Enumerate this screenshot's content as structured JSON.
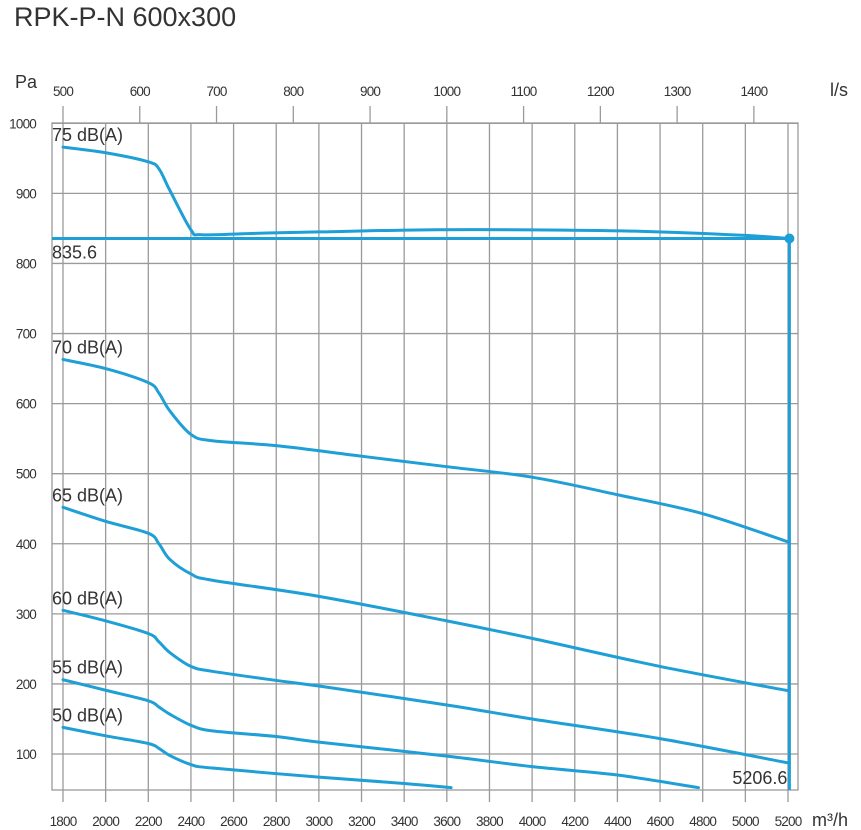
{
  "chart_data": {
    "type": "line",
    "title": "RPK-P-N 600x300",
    "ylabel": "Pa",
    "xlabel": "m³/h",
    "x2label": "l/s",
    "xlim": [
      1750,
      5240
    ],
    "ylim": [
      48.6,
      1000
    ],
    "x_ticks": [
      1800,
      2000,
      2200,
      2400,
      2600,
      2800,
      3000,
      3200,
      3400,
      3600,
      3800,
      4000,
      4200,
      4400,
      4600,
      4800,
      5000,
      5200
    ],
    "x2_ticks": [
      500,
      600,
      700,
      800,
      900,
      1000,
      1100,
      1200,
      1300,
      1400
    ],
    "y_ticks": [
      100,
      200,
      300,
      400,
      500,
      600,
      700,
      800,
      900,
      1000
    ],
    "grid": true,
    "colors": {
      "line": "#1e9fd6",
      "grid": "#9a9a9a"
    },
    "series": [
      {
        "name": "75 dB(A)",
        "points": [
          [
            1800,
            966
          ],
          [
            2000,
            958
          ],
          [
            2200,
            945
          ],
          [
            2250,
            935
          ],
          [
            2300,
            905
          ],
          [
            2400,
            848
          ],
          [
            2450,
            841
          ],
          [
            2700,
            843
          ],
          [
            3000,
            845
          ],
          [
            3500,
            848
          ],
          [
            4000,
            848
          ],
          [
            4500,
            846
          ],
          [
            5000,
            840
          ],
          [
            5206.6,
            835.6
          ]
        ]
      },
      {
        "name": "70 dB(A)",
        "points": [
          [
            1800,
            663
          ],
          [
            2000,
            650
          ],
          [
            2200,
            630
          ],
          [
            2250,
            615
          ],
          [
            2300,
            590
          ],
          [
            2400,
            556
          ],
          [
            2500,
            547
          ],
          [
            2800,
            540
          ],
          [
            3200,
            525
          ],
          [
            3600,
            510
          ],
          [
            4000,
            495
          ],
          [
            4400,
            470
          ],
          [
            4800,
            443
          ],
          [
            5206.6,
            402
          ]
        ]
      },
      {
        "name": "65 dB(A)",
        "points": [
          [
            1800,
            452
          ],
          [
            2000,
            432
          ],
          [
            2200,
            415
          ],
          [
            2250,
            400
          ],
          [
            2300,
            378
          ],
          [
            2400,
            357
          ],
          [
            2500,
            348
          ],
          [
            3000,
            325
          ],
          [
            3600,
            290
          ],
          [
            4000,
            265
          ],
          [
            4600,
            225
          ],
          [
            5206.6,
            190
          ]
        ]
      },
      {
        "name": "60 dB(A)",
        "points": [
          [
            1800,
            305
          ],
          [
            2000,
            290
          ],
          [
            2200,
            272
          ],
          [
            2250,
            260
          ],
          [
            2300,
            245
          ],
          [
            2400,
            225
          ],
          [
            2500,
            218
          ],
          [
            2800,
            205
          ],
          [
            3000,
            197
          ],
          [
            3600,
            170
          ],
          [
            4000,
            150
          ],
          [
            4600,
            122
          ],
          [
            5206.6,
            87
          ]
        ]
      },
      {
        "name": "55 dB(A)",
        "points": [
          [
            1800,
            206
          ],
          [
            2000,
            191
          ],
          [
            2200,
            176
          ],
          [
            2250,
            167
          ],
          [
            2300,
            157
          ],
          [
            2400,
            141
          ],
          [
            2500,
            133
          ],
          [
            2800,
            125
          ],
          [
            3000,
            117
          ],
          [
            3600,
            97
          ],
          [
            4000,
            82
          ],
          [
            4400,
            70
          ],
          [
            4780,
            52
          ]
        ]
      },
      {
        "name": "50 dB(A)",
        "points": [
          [
            1800,
            138
          ],
          [
            2000,
            126
          ],
          [
            2200,
            115
          ],
          [
            2250,
            108
          ],
          [
            2300,
            98
          ],
          [
            2400,
            85
          ],
          [
            2500,
            80
          ],
          [
            3000,
            67
          ],
          [
            3400,
            58
          ],
          [
            3620,
            52
          ]
        ]
      }
    ],
    "operating_point": {
      "flow": 5206.6,
      "pressure": 835.6,
      "flow_label": "5206.6",
      "pressure_label": "835.6"
    }
  }
}
